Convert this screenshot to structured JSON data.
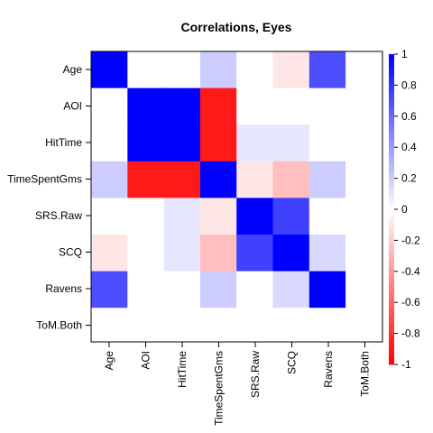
{
  "chart_data": {
    "type": "heatmap",
    "title": "Correlations, Eyes",
    "rows": [
      "Age",
      "AOI",
      "HitTime",
      "TimeSpentGms",
      "SRS.Raw",
      "SCQ",
      "Ravens",
      "ToM.Both"
    ],
    "columns": [
      "Age",
      "AOI",
      "HitTime",
      "TimeSpentGms",
      "SRS.Raw",
      "SCQ",
      "Ravens",
      "ToM.Both"
    ],
    "values": [
      [
        1,
        0,
        0,
        0.2,
        0,
        -0.1,
        0.7,
        0
      ],
      [
        0,
        1,
        1,
        -0.9,
        0,
        0,
        0,
        0
      ],
      [
        0,
        1,
        1,
        -0.9,
        0.1,
        0.1,
        0,
        0
      ],
      [
        0.2,
        -0.9,
        -0.9,
        1,
        -0.1,
        -0.25,
        0.2,
        0
      ],
      [
        0,
        0,
        0.1,
        -0.1,
        1,
        0.75,
        0,
        0
      ],
      [
        -0.1,
        0,
        0.1,
        -0.25,
        0.75,
        1,
        0.15,
        0
      ],
      [
        0.7,
        0,
        0,
        0.2,
        0,
        0.15,
        1,
        0
      ],
      [
        0,
        0,
        0,
        0,
        0,
        0,
        0,
        0
      ]
    ],
    "colorbar": {
      "min": -1,
      "max": 1,
      "ticks": [
        1,
        0.8,
        0.6,
        0.4,
        0.2,
        0,
        -0.2,
        -0.4,
        -0.6,
        -0.8,
        -1
      ],
      "tick_labels": [
        "1",
        "0.8",
        "0.6",
        "0.4",
        "0.2",
        "0",
        "-0.2",
        "-0.4",
        "-0.6",
        "-0.8",
        "-1"
      ],
      "colors": {
        "negative": "#ff0000",
        "zero": "#ffffff",
        "positive": "#0000ff"
      }
    }
  }
}
